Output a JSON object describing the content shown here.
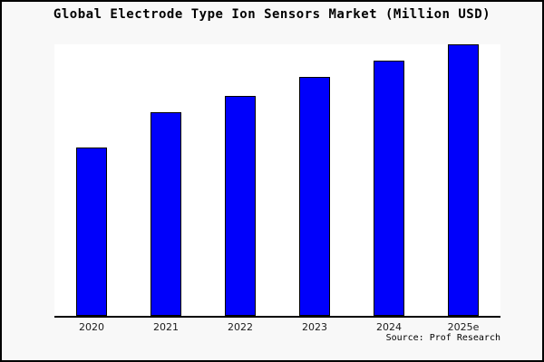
{
  "title": "Global Electrode Type Ion Sensors Market (Million USD)",
  "source": "Source: Prof Research",
  "colors": {
    "figure_background": "#f8f8f8",
    "plot_background": "#ffffff",
    "bar_fill": "#0000fb",
    "bar_border": "#000000",
    "axis": "#000000",
    "tick_label": "#1a1a1a",
    "title_text": "#000000",
    "image_border": "#000000"
  },
  "chart_data": {
    "type": "bar",
    "title": "Global Electrode Type Ion Sensors Market (Million USD)",
    "categories": [
      "2020",
      "2021",
      "2022",
      "2023",
      "2024",
      "2025e"
    ],
    "values": [
      62,
      75,
      81,
      88,
      94,
      100
    ],
    "xlabel": "",
    "ylabel": "",
    "ylim": [
      0,
      100
    ],
    "y_axis_labels_visible": false,
    "grid": false,
    "legend": false,
    "annotation": "Source: Prof Research"
  }
}
